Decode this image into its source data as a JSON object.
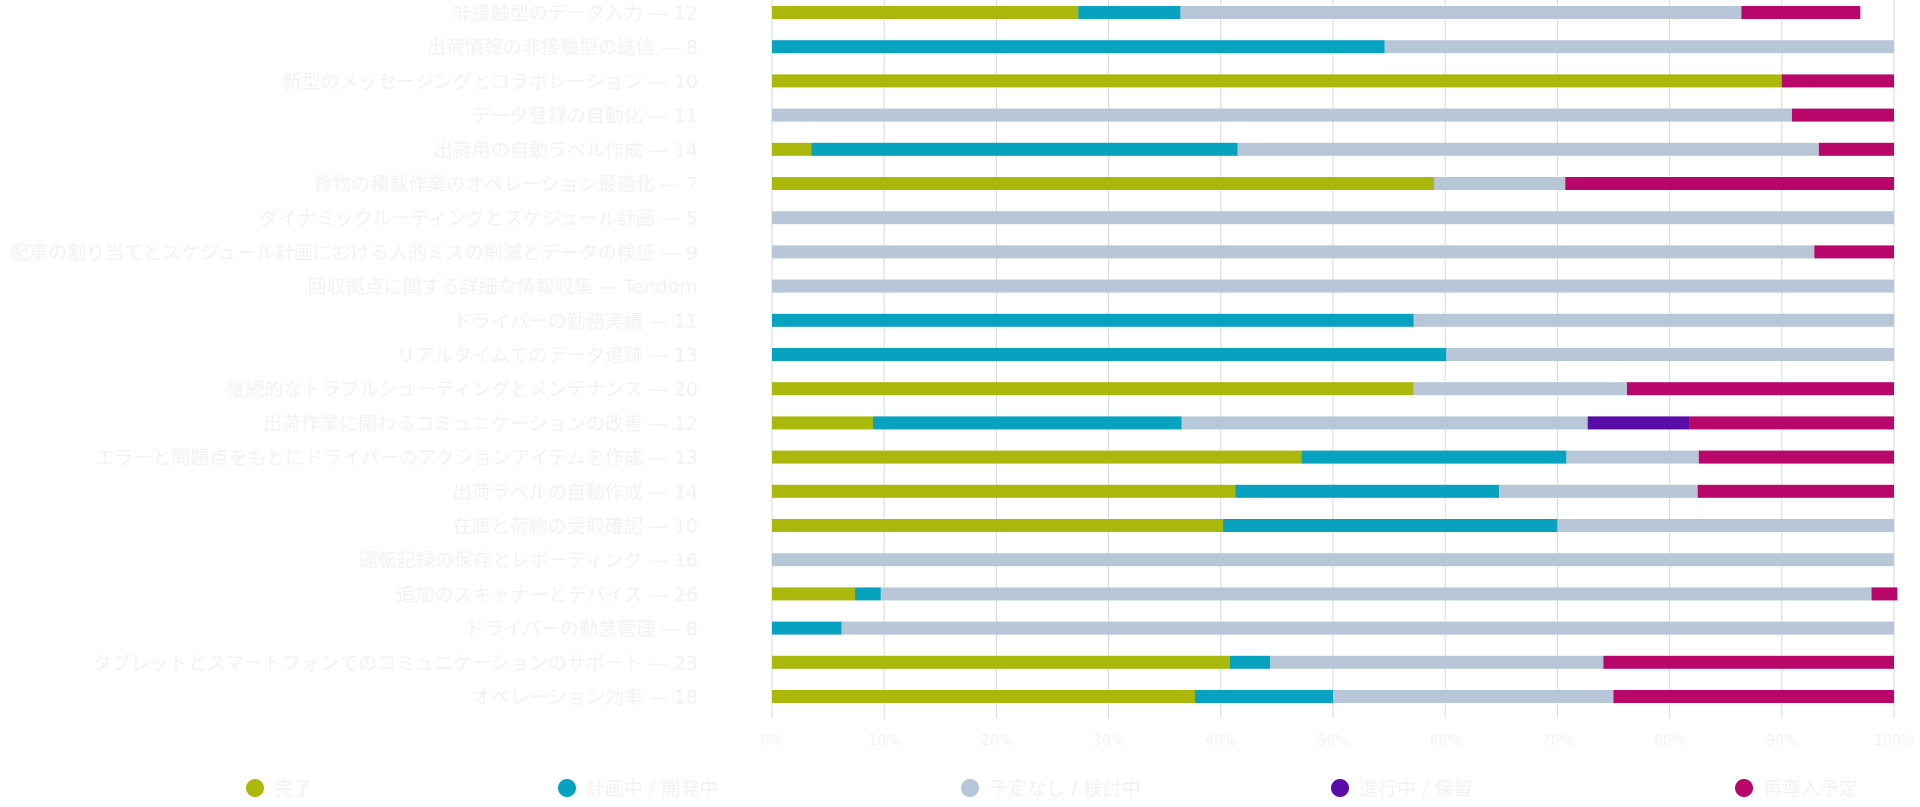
{
  "colors": {
    "series": [
      "#a9b80a",
      "#06a2bf",
      "#b8c7d8",
      "#5a0ca6",
      "#b8066a"
    ],
    "grid": "#d9d9d9",
    "text": "#f2f2f2"
  },
  "chart_data": {
    "type": "bar",
    "orientation": "horizontal",
    "stacked": true,
    "title": "",
    "xlabel": "",
    "ylabel": "",
    "xlim": [
      0,
      100
    ],
    "grid": true,
    "legend_position": "bottom",
    "x_ticks": [
      "0%",
      "10%",
      "20%",
      "30%",
      "40%",
      "50%",
      "60%",
      "70%",
      "80%",
      "90%",
      "100%"
    ],
    "categories": [
      "非接触型のデータ入力 — 12",
      "出荷情報の非接触型の送信 — 8",
      "新型のメッセージングとコラボレーション — 10",
      "データ登録の自動化 — 11",
      "出荷用の自動ラベル作成 — 14",
      "貨物の積載作業のオペレーション最適化 — 7",
      "ダイナミックルーティングとスケジュール計画 — 5",
      "配車の割り当てとスケジュール計画における人的ミスの削減とデータの検証 — 9",
      "回収拠点に関する詳細な情報収集 — Tendom",
      "ドライバーの勤務実績 — 11",
      "リアルタイムでのデータ追跡 — 13",
      "継続的なトラブルシューティングとメンテナンス — 20",
      "出荷作業に関わるコミュニケーションの改善 — 12",
      "エラーと問題点をもとにドライバーのアクションアイテムを作成 — 13",
      "出荷ラベルの自動作成 — 14",
      "在庫と荷物の受取確認 — 10",
      "運転記録の保存とレポーティング — 16",
      "追加のスキャナーとデバイス — 26",
      "ドライバーの勤怠管理 — 8",
      "タブレットとスマートフォンでのコミュニケーションのサポート — 23",
      "オペレーション効率 — 18"
    ],
    "series": [
      {
        "name": "完了",
        "values": [
          27.3,
          0,
          90,
          0,
          3.5,
          59,
          0,
          0,
          0,
          0,
          0,
          57.2,
          9,
          47.2,
          41.3,
          40.2,
          0,
          7.4,
          0,
          40.8,
          37.7
        ]
      },
      {
        "name": "計画中 / 開発中",
        "values": [
          9.1,
          54.6,
          0,
          0,
          38,
          0,
          0,
          0,
          0,
          57.2,
          60.1,
          0,
          27.5,
          23.6,
          23.5,
          29.8,
          0,
          2.3,
          6.2,
          3.6,
          12.3
        ]
      },
      {
        "name": "予定なし / 検討中",
        "values": [
          50,
          45.4,
          0,
          90.9,
          51.8,
          11.7,
          100,
          92.9,
          100,
          42.8,
          39.9,
          19,
          36.2,
          11.8,
          17.7,
          30,
          100,
          88.3,
          93.8,
          29.7,
          25
        ]
      },
      {
        "name": "進行中 / 保留",
        "values": [
          0,
          0,
          0,
          0,
          0,
          0,
          0,
          0,
          0,
          0,
          0,
          0,
          9.1,
          0,
          0,
          0,
          0,
          0,
          0,
          0,
          0
        ]
      },
      {
        "name": "再導入予定",
        "values": [
          10.6,
          0,
          10,
          9.1,
          6.7,
          29.3,
          0,
          7.1,
          0,
          0,
          0,
          23.8,
          18.2,
          17.4,
          17.5,
          0,
          0,
          2.3,
          0,
          25.9,
          25
        ]
      }
    ]
  }
}
